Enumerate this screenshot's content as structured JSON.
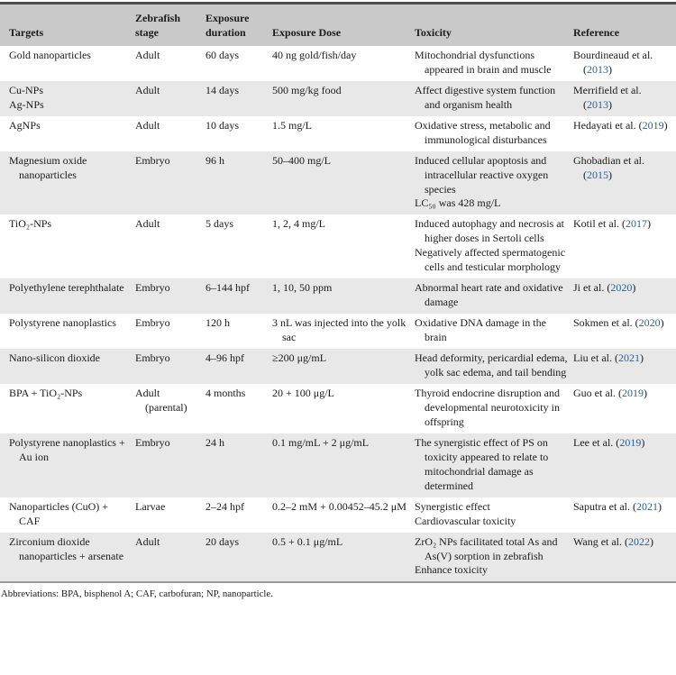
{
  "colors": {
    "link_blue": "#30618e",
    "header_bg": "#c9c9c9",
    "alt_row_bg": "#e8e8e8"
  },
  "table": {
    "columns": [
      {
        "label": "Targets"
      },
      {
        "label": "Zebrafish stage"
      },
      {
        "label": "Exposure duration"
      },
      {
        "label": "Exposure Dose"
      },
      {
        "label": "Toxicity"
      },
      {
        "label": "Reference"
      }
    ],
    "rows": [
      {
        "targets": [
          "Gold nanoparticles"
        ],
        "stage": "Adult",
        "duration": "60 days",
        "dose": [
          "40 ng gold/fish/day"
        ],
        "toxicity": [
          "Mitochondrial dysfunctions appeared in brain and muscle"
        ],
        "reference": {
          "before": "Bourdineaud et al. (",
          "year": "2013",
          "after": ")"
        }
      },
      {
        "targets": [
          "Cu-NPs",
          "Ag-NPs"
        ],
        "stage": "Adult",
        "duration": "14 days",
        "dose": [
          "500 mg/kg food"
        ],
        "toxicity": [
          "Affect digestive system function and organism health"
        ],
        "reference": {
          "before": "Merrifield et al. (",
          "year": "2013",
          "after": ")"
        }
      },
      {
        "targets": [
          "AgNPs"
        ],
        "stage": "Adult",
        "duration": "10 days",
        "dose": [
          "1.5 mg/L"
        ],
        "toxicity": [
          "Oxidative stress, metabolic and immunological disturbances"
        ],
        "reference": {
          "before": "Hedayati et al. (",
          "year": "2019",
          "after": ")"
        }
      },
      {
        "targets": [
          "Magnesium oxide nanoparticles"
        ],
        "stage": "Embryo",
        "duration": "96 h",
        "dose": [
          "50–400 mg/L"
        ],
        "toxicity": [
          "Induced cellular apoptosis and intracellular reactive oxygen species",
          "LC₅₀ was 428 mg/L"
        ],
        "reference": {
          "before": "Ghobadian et al. (",
          "year": "2015",
          "after": ")"
        }
      },
      {
        "targets": [
          "TiO₂-NPs"
        ],
        "stage": "Adult",
        "duration": "5 days",
        "dose": [
          "1, 2, 4 mg/L"
        ],
        "toxicity": [
          "Induced autophagy and necrosis at higher doses in Sertoli cells",
          "Negatively affected spermatogenic cells and testicular morphology"
        ],
        "reference": {
          "before": "Kotil et al. (",
          "year": "2017",
          "after": ")"
        }
      },
      {
        "targets": [
          "Polyethylene terephthalate"
        ],
        "stage": "Embryo",
        "duration": "6–144 hpf",
        "dose": [
          "1, 10, 50 ppm"
        ],
        "toxicity": [
          "Abnormal heart rate and oxidative damage"
        ],
        "reference": {
          "before": "Ji et al. (",
          "year": "2020",
          "after": ")"
        }
      },
      {
        "targets": [
          "Polystyrene nanoplastics"
        ],
        "stage": "Embryo",
        "duration": "120 h",
        "dose": [
          "3 nL was injected into the yolk sac"
        ],
        "toxicity": [
          "Oxidative DNA damage in the brain"
        ],
        "reference": {
          "before": "Sokmen et al. (",
          "year": "2020",
          "after": ")"
        }
      },
      {
        "targets": [
          "Nano-silicon dioxide"
        ],
        "stage": "Embryo",
        "duration": "4–96 hpf",
        "dose": [
          "≥200 μg/mL"
        ],
        "toxicity": [
          "Head deformity, pericardial edema, yolk sac edema, and tail bending"
        ],
        "reference": {
          "before": "Liu et al. (",
          "year": "2021",
          "after": ")"
        }
      },
      {
        "targets": [
          "BPA + TiO₂-NPs"
        ],
        "stage": "Adult (parental)",
        "duration": "4 months",
        "dose": [
          "20 + 100 μg/L"
        ],
        "toxicity": [
          "Thyroid endocrine disruption and developmental neurotoxicity in offspring"
        ],
        "reference": {
          "before": "Guo et al. (",
          "year": "2019",
          "after": ")"
        }
      },
      {
        "targets": [
          "Polystyrene nanoplastics + Au ion"
        ],
        "stage": "Embryo",
        "duration": "24 h",
        "dose": [
          "0.1 mg/mL + 2 μg/mL"
        ],
        "toxicity": [
          "The synergistic effect of PS on toxicity appeared to relate to mitochondrial damage as determined"
        ],
        "reference": {
          "before": "Lee et al. (",
          "year": "2019",
          "after": ")"
        }
      },
      {
        "targets": [
          "Nanoparticles (CuO) + CAF"
        ],
        "stage": "Larvae",
        "duration": "2–24 hpf",
        "dose": [
          "0.2–2 mM + 0.00452–45.2 μM"
        ],
        "toxicity": [
          "Synergistic effect",
          "Cardiovascular toxicity"
        ],
        "reference": {
          "before": "Saputra et al. (",
          "year": "2021",
          "after": ")"
        }
      },
      {
        "targets": [
          "Zirconium dioxide nanoparticles + arsen­ate"
        ],
        "stage": "Adult",
        "duration": "20 days",
        "dose": [
          "0.5 + 0.1 μg/mL"
        ],
        "toxicity": [
          "ZrO₂ NPs facilitated total As and As(V) sorption in zebrafish",
          "Enhance toxicity"
        ],
        "reference": {
          "before": "Wang et al. (",
          "year": "2022",
          "after": ")"
        }
      }
    ],
    "footnote": "Abbreviations: BPA, bisphenol A; CAF, carbofuran; NP, nanoparticle."
  }
}
